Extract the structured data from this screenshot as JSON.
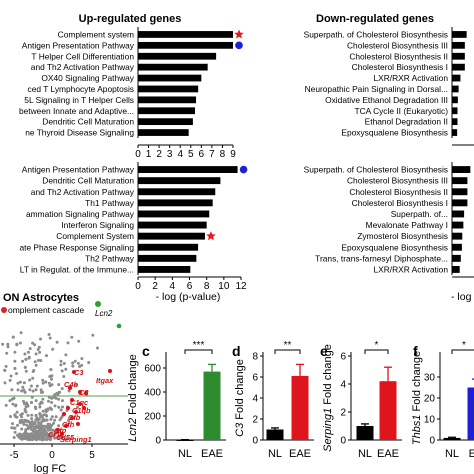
{
  "headers": {
    "up": "Up-regulated genes",
    "down": "Down-regulated genes"
  },
  "chart_data": [
    {
      "type": "bar",
      "id": "up-top",
      "orientation": "horizontal",
      "categories": [
        "Complement system",
        "Antigen Presentation Pathway",
        "T Helper Cell Differentiation",
        "and Th2 Activation Pathway",
        "OX40 Signaling Pathway",
        "ced T Lymphocyte Apoptosis",
        "5L Signaling in T Helper Cells",
        "between Innate and Adaptive...",
        "Dendritic Cell Maturation",
        "ne Thyroid Disease Signaling"
      ],
      "values": [
        9.0,
        9.0,
        7.4,
        6.6,
        6.0,
        5.7,
        5.5,
        5.4,
        5.2,
        4.8
      ],
      "markers": [
        {
          "category": "Complement system",
          "shape": "star",
          "color": "#e41a1c"
        },
        {
          "category": "Antigen Presentation Pathway",
          "shape": "circle",
          "color": "#1f1fd6"
        }
      ],
      "xticks": [
        "0",
        "1",
        "2",
        "3",
        "4",
        "5",
        "6",
        "7",
        "8",
        "9"
      ],
      "xlim": [
        0,
        9
      ]
    },
    {
      "type": "bar",
      "id": "up-bottom",
      "orientation": "horizontal",
      "categories": [
        "Antigen Presentation Pathway",
        "Dendritic Cell Maturation",
        "and Th2 Activation Pathway",
        "Th1 Pathway",
        "ammation Signaling Pathway",
        "Interferon Signaling",
        "Complement System",
        "ate Phase Response Signaling",
        "Th2 Pathway",
        "LT in Regulat. of the Immune..."
      ],
      "values": [
        11.6,
        9.6,
        9.0,
        8.7,
        8.3,
        8.0,
        7.8,
        7.0,
        6.8,
        6.1
      ],
      "markers": [
        {
          "category": "Antigen Presentation Pathway",
          "shape": "circle",
          "color": "#1f1fd6"
        },
        {
          "category": "Complement System",
          "shape": "star",
          "color": "#e41a1c"
        }
      ],
      "xticks": [
        "0",
        "2",
        "4",
        "6",
        "8",
        "10",
        "12"
      ],
      "xlim": [
        0,
        12
      ],
      "xlabel": "- log (p-value)"
    },
    {
      "type": "bar",
      "id": "down-top",
      "orientation": "horizontal",
      "categories": [
        "Superpath. of Cholesterol Biosynthesis",
        "Cholesterol Biosynthesis III",
        "Cholesterol Biosynthesis II",
        "Cholesterol Biosynthesis I",
        "LXR/RXR Activation",
        "Neuropathic Pain Signaling in Dorsal...",
        "Oxidative Ethanol Degradation III",
        "TCA Cycle II (Eukaryotic)",
        "Ethanol Degradation II",
        "Epoxysqualene Biosynthesis"
      ],
      "values": [
        4.0,
        3.5,
        3.5,
        3.5,
        2.3,
        1.8,
        1.6,
        1.5,
        1.5,
        1.4
      ]
    },
    {
      "type": "bar",
      "id": "down-bottom",
      "orientation": "horizontal",
      "categories": [
        "Superpath. of Cholesterol Biosynthesis",
        "Cholesterol Biosynthesis III",
        "Cholesterol Biosynthesis II",
        "Cholesterol Biosynthesis I",
        "Superpath. of...",
        "Mevalonate Pathway I",
        "Zymosterol Biosynthesis",
        "Epoxysqualene Biosynthesis",
        "Trans, trans-farnesyl Diphosphate...",
        "LXR/RXR Activation"
      ],
      "values": [
        5.0,
        4.2,
        4.2,
        4.2,
        3.3,
        3.1,
        2.8,
        2.7,
        2.4,
        2.1
      ],
      "xlabel": "- log"
    },
    {
      "type": "scatter",
      "id": "volcano",
      "title": "ON Astrocytes",
      "legend": [
        {
          "label": "omplement cascade",
          "color": "#d62728"
        },
        {
          "label": "Lcn2",
          "color": "#2ca02c"
        }
      ],
      "gene_labels": [
        "C3",
        "C4b",
        "C2",
        "Itgax",
        "C1qc",
        "C1qb",
        "Cfb",
        "Cfh",
        "Cfp",
        "Cd55",
        "Cr1l",
        "Serping1"
      ],
      "xticks": [
        "-5",
        "0",
        "5"
      ],
      "xlabel": "log FC"
    },
    {
      "type": "bar",
      "panel": "c",
      "categories": [
        "NL",
        "EAE"
      ],
      "values": [
        2,
        570
      ],
      "errors": [
        1,
        60
      ],
      "colors": [
        "#000000",
        "#2e8b2e"
      ],
      "ylabel": "Lcn2 Fold change",
      "yticks": [
        "0",
        "200",
        "400",
        "600"
      ],
      "ylim": [
        0,
        700
      ],
      "significance": "***"
    },
    {
      "type": "bar",
      "panel": "d",
      "categories": [
        "NL",
        "EAE"
      ],
      "values": [
        1.0,
        6.1
      ],
      "errors": [
        0.15,
        1.1
      ],
      "colors": [
        "#000000",
        "#e0141c"
      ],
      "ylabel": "C3 Fold change",
      "yticks": [
        "0",
        "2",
        "4",
        "6",
        "8"
      ],
      "ylim": [
        0,
        8
      ],
      "significance": "**"
    },
    {
      "type": "bar",
      "panel": "e",
      "categories": [
        "NL",
        "EAE"
      ],
      "values": [
        1.0,
        4.2
      ],
      "errors": [
        0.15,
        1.0
      ],
      "colors": [
        "#000000",
        "#e0141c"
      ],
      "ylabel": "Serping1 Fold change",
      "yticks": [
        "0",
        "2",
        "4",
        "6"
      ],
      "ylim": [
        0,
        6
      ],
      "significance": "*"
    },
    {
      "type": "bar",
      "panel": "f",
      "categories": [
        "NL",
        "EA"
      ],
      "values": [
        1.0,
        25.0
      ],
      "errors": [
        0.3,
        4.0
      ],
      "colors": [
        "#000000",
        "#1f1fd6"
      ],
      "ylabel": "Thbs1 Fold change",
      "yticks": [
        "0",
        "10",
        "20",
        "30"
      ],
      "ylim": [
        0,
        40
      ],
      "significance": "*"
    }
  ]
}
